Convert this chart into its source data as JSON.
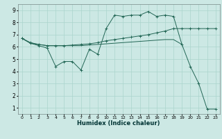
{
  "xlabel": "Humidex (Indice chaleur)",
  "bg_color": "#cce8e4",
  "grid_color": "#aad4cc",
  "line_color": "#226655",
  "xlim": [
    -0.5,
    23.5
  ],
  "ylim": [
    0.5,
    9.5
  ],
  "xticks": [
    0,
    1,
    2,
    3,
    4,
    5,
    6,
    7,
    8,
    9,
    10,
    11,
    12,
    13,
    14,
    15,
    16,
    17,
    18,
    19,
    20,
    21,
    22,
    23
  ],
  "yticks": [
    1,
    2,
    3,
    4,
    5,
    6,
    7,
    8,
    9
  ],
  "series1_x": [
    0,
    1,
    2,
    3,
    4,
    5,
    6,
    7,
    8,
    9,
    10,
    11,
    12,
    13,
    14,
    15,
    16,
    17,
    18,
    19,
    20,
    21,
    22,
    23
  ],
  "series1_y": [
    6.7,
    6.3,
    6.1,
    5.9,
    4.4,
    4.8,
    4.8,
    4.1,
    5.8,
    5.4,
    7.5,
    8.6,
    8.5,
    8.6,
    8.6,
    8.9,
    8.5,
    8.6,
    8.5,
    6.2,
    4.4,
    3.0,
    0.9,
    0.9
  ],
  "series1_markers": [
    0,
    1,
    2,
    3,
    4,
    5,
    6,
    7,
    8,
    9,
    10,
    11,
    12,
    13,
    14,
    15,
    16,
    17,
    18,
    19,
    20,
    21,
    22,
    23
  ],
  "series2_x": [
    0,
    1,
    2,
    3,
    4,
    5,
    6,
    7,
    8,
    9,
    10,
    11,
    12,
    13,
    14,
    15,
    16,
    17,
    18,
    19,
    20,
    21,
    22,
    23
  ],
  "series2_y": [
    6.7,
    6.35,
    6.2,
    6.1,
    6.1,
    6.1,
    6.15,
    6.2,
    6.25,
    6.35,
    6.5,
    6.6,
    6.7,
    6.8,
    6.9,
    7.0,
    7.15,
    7.3,
    7.5,
    7.5,
    7.5,
    7.5,
    7.5,
    7.5
  ],
  "series3_x": [
    0,
    1,
    2,
    3,
    4,
    5,
    6,
    7,
    8,
    9,
    10,
    11,
    12,
    13,
    14,
    15,
    16,
    17,
    18,
    19
  ],
  "series3_y": [
    6.7,
    6.3,
    6.2,
    6.1,
    6.1,
    6.1,
    6.1,
    6.1,
    6.15,
    6.2,
    6.25,
    6.3,
    6.35,
    6.4,
    6.45,
    6.5,
    6.55,
    6.6,
    6.6,
    6.2
  ]
}
